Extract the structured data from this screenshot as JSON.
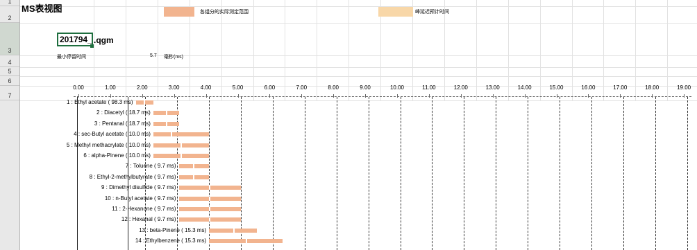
{
  "sheet": {
    "title": "MS表视图",
    "legend": [
      {
        "label": "各组分的实际测定范围",
        "color": "#f2b48f"
      },
      {
        "label": "峰延迟预计时间",
        "color": "#f8d7a8"
      }
    ],
    "file_name_cell": "201794_",
    "file_suffix": ".qgm",
    "min_dwell_label": "最小停留时间",
    "min_dwell_value": "5.7",
    "min_dwell_unit": "毫秒(ms)",
    "row_numbers": [
      "1",
      "2",
      "3",
      "4",
      "5",
      "6",
      "7"
    ]
  },
  "timeline": {
    "ticks": [
      "0.00",
      "1.00",
      "2.00",
      "3.00",
      "4.00",
      "5.00",
      "6.00",
      "7.00",
      "8.00",
      "9.00",
      "10.00",
      "11.00",
      "12.00",
      "13.00",
      "14.00",
      "15.00",
      "16.00",
      "17.00",
      "18.00",
      "19.00"
    ]
  },
  "compounds": [
    {
      "label": "1 : Ethyl acetate ( 98.3 ms)",
      "start": 1.8,
      "end": 2.35,
      "split": 2.05
    },
    {
      "label": "2 : Diacetyl ( 18.7 ms)",
      "start": 2.35,
      "end": 3.15,
      "split": 2.75
    },
    {
      "label": "3 : Pentanal ( 18.7 ms)",
      "start": 2.35,
      "end": 3.15,
      "split": 2.75
    },
    {
      "label": "4 : sec-Butyl acetate ( 10.0 ms)",
      "start": 2.35,
      "end": 4.1,
      "split": 2.9
    },
    {
      "label": "5 : Methyl methacrylate ( 10.0 ms)",
      "start": 2.35,
      "end": 4.1,
      "split": 3.2
    },
    {
      "label": "6 : alpha-Pinene ( 10.0 ms)",
      "start": 2.35,
      "end": 4.1,
      "split": 3.2
    },
    {
      "label": "7 : Toluene ( 9.7 ms)",
      "start": 3.15,
      "end": 4.1,
      "split": 3.6
    },
    {
      "label": "8 : Ethyl-2-methylbutyrate ( 9.7 ms)",
      "start": 3.15,
      "end": 4.1,
      "split": 3.6
    },
    {
      "label": "9 : Dimethyl disulfide ( 9.7 ms)",
      "start": 3.15,
      "end": 5.1,
      "split": 4.1
    },
    {
      "label": "10 : n-Butyl acetate ( 9.7 ms)",
      "start": 3.15,
      "end": 5.1,
      "split": 4.1
    },
    {
      "label": "11 : 2-Hexanone ( 9.7 ms)",
      "start": 3.15,
      "end": 5.1,
      "split": 4.1
    },
    {
      "label": "12 : Hexanal ( 9.7 ms)",
      "start": 3.15,
      "end": 5.1,
      "split": 4.1
    },
    {
      "label": "13 : beta-Pinene ( 15.3 ms)",
      "start": 4.1,
      "end": 5.6,
      "split": 4.85
    },
    {
      "label": "14 : Ethylbenzene ( 15.3 ms)",
      "start": 4.1,
      "end": 6.4,
      "split": 5.25
    }
  ]
}
